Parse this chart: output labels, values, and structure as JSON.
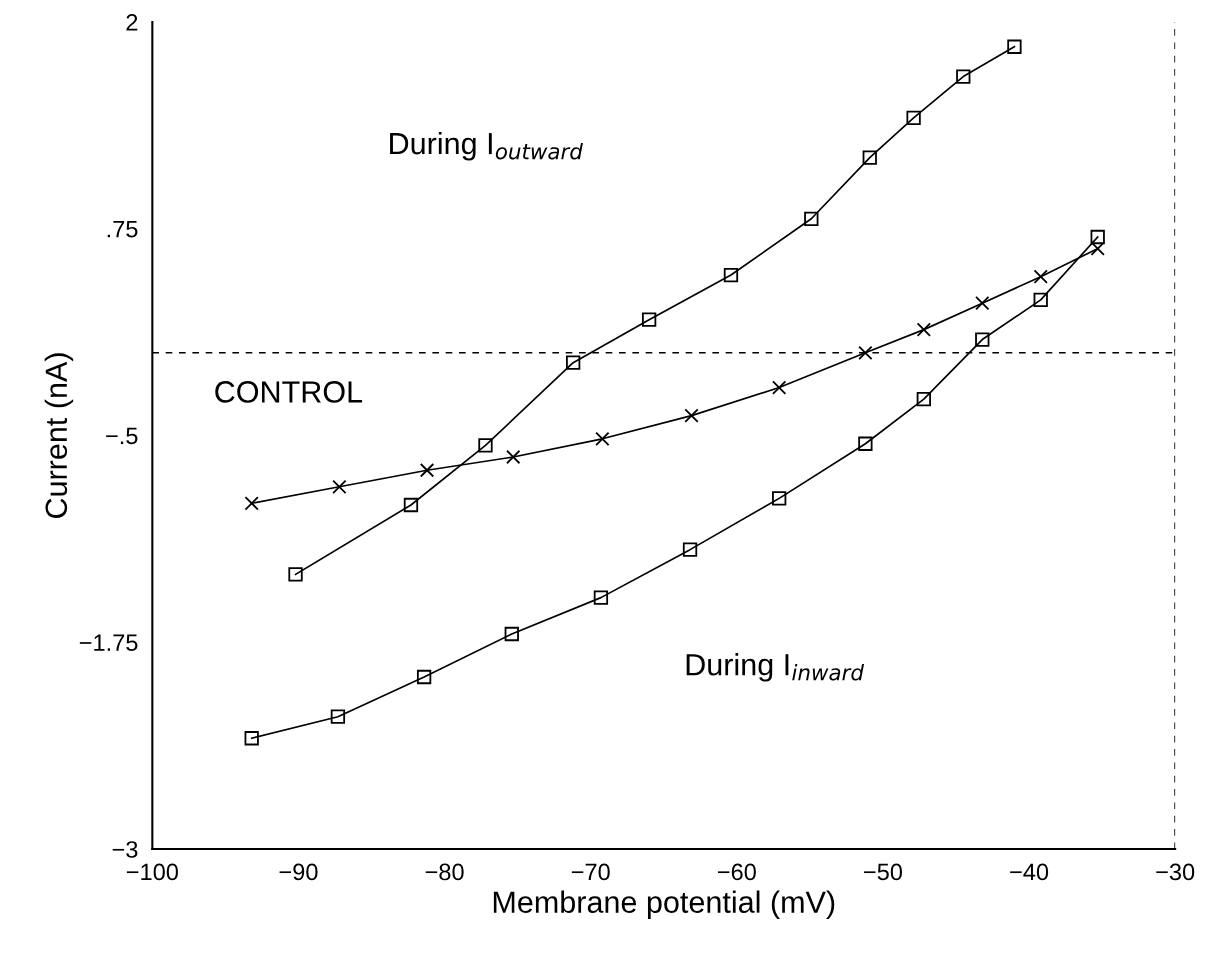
{
  "chart_data": {
    "type": "line",
    "xlabel": "Membrane potential (mV)",
    "ylabel": "Current (nA)",
    "xlim": [
      -100,
      -30
    ],
    "ylim": [
      -3,
      2
    ],
    "xticks": [
      {
        "value": -100,
        "label": "−100"
      },
      {
        "value": -90,
        "label": "−90"
      },
      {
        "value": -80,
        "label": "−80"
      },
      {
        "value": -70,
        "label": "−70"
      },
      {
        "value": -60,
        "label": "−60"
      },
      {
        "value": -50,
        "label": "−50"
      },
      {
        "value": -40,
        "label": "−40"
      },
      {
        "value": -30,
        "label": "−30"
      }
    ],
    "yticks": [
      2,
      {
        "value": 0.75,
        "label": ".75"
      },
      {
        "value": -0.5,
        "label": "−.5"
      },
      {
        "value": -1.75,
        "label": "−1.75"
      },
      {
        "value": -3,
        "label": "−3"
      }
    ],
    "grid": false,
    "legend": false,
    "series": [
      {
        "color": "#000000",
        "marker": "square",
        "x": [
          -90.2,
          -82.3,
          -77.2,
          -71.2,
          -66.0,
          -60.4,
          -54.9,
          -50.9,
          -47.9,
          -44.5,
          -41.0
        ],
        "values": [
          -1.34,
          -0.92,
          -0.56,
          -0.06,
          0.2,
          0.47,
          0.81,
          1.18,
          1.42,
          1.67,
          1.85
        ]
      },
      {
        "color": "#000000",
        "marker": "cross",
        "x": [
          -93.2,
          -87.2,
          -81.2,
          -75.3,
          -69.2,
          -63.1,
          -57.1,
          -51.2,
          -47.2,
          -43.2,
          -39.2,
          -35.3
        ],
        "values": [
          -0.91,
          -0.81,
          -0.71,
          -0.63,
          -0.52,
          -0.38,
          -0.21,
          0.0,
          0.14,
          0.3,
          0.46,
          0.63
        ]
      },
      {
        "color": "#000000",
        "marker": "square",
        "x": [
          -93.2,
          -87.3,
          -81.4,
          -75.4,
          -69.3,
          -63.2,
          -57.1,
          -51.2,
          -47.2,
          -43.2,
          -39.2,
          -35.3
        ],
        "values": [
          -2.33,
          -2.2,
          -1.96,
          -1.7,
          -1.48,
          -1.19,
          -0.88,
          -0.55,
          -0.28,
          0.08,
          0.32,
          0.7
        ]
      }
    ],
    "ref_lines": [
      {
        "axis": "y",
        "value": 0,
        "line_style": "dashed",
        "color": "#000000"
      },
      {
        "axis": "x",
        "value": -30,
        "line_style": "dashed",
        "color": "#000000"
      }
    ],
    "annotations": [
      "During I$_{outward}$",
      "CONTROL",
      "During I$_{inward}$"
    ]
  }
}
